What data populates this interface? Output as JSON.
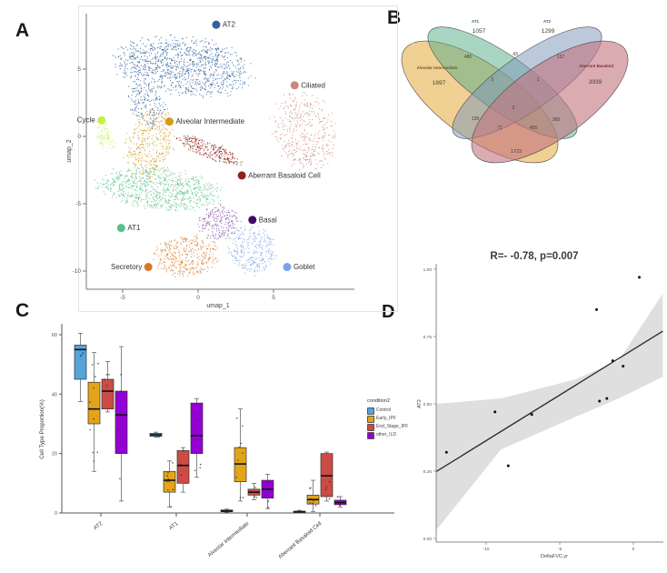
{
  "figure": {
    "panel_a_label": "A",
    "panel_b_label": "B",
    "panel_c_label": "C",
    "panel_d_label": "D"
  },
  "chart_data": [
    {
      "id": "umap",
      "type": "scatter",
      "xlabel": "umap_1",
      "ylabel": "umap_2",
      "xticks": [
        -5,
        0,
        5
      ],
      "yticks": [
        5,
        0,
        -5,
        -10
      ],
      "xlim": [
        -7.4,
        10.2
      ],
      "ylim": [
        -11.5,
        9.3
      ],
      "clusters": [
        {
          "name": "AT2",
          "color": "#31639c",
          "blobs": [
            {
              "cx": -1.0,
              "cy": 5.2,
              "rx": 4.4,
              "ry": 2.1,
              "rot": -8,
              "n": 1100
            },
            {
              "cx": -3.4,
              "cy": 2.3,
              "rx": 1.1,
              "ry": 1.7,
              "rot": 30,
              "n": 170
            }
          ],
          "label": {
            "text": "AT2",
            "dot": [
              1.2,
              8.3
            ],
            "side": "right"
          }
        },
        {
          "name": "Ciliated",
          "color": "#c9897c",
          "blobs": [
            {
              "cx": 7.0,
              "cy": 0.4,
              "rx": 2.0,
              "ry": 2.8,
              "rot": 12,
              "n": 430
            }
          ],
          "label": {
            "text": "Ciliated",
            "dot": [
              6.4,
              3.8
            ],
            "side": "right"
          }
        },
        {
          "name": "Cycle",
          "color": "#c3ef49",
          "blobs": [
            {
              "cx": -6.2,
              "cy": 0.0,
              "rx": 0.5,
              "ry": 1.2,
              "rot": 15,
              "n": 80
            }
          ],
          "label": {
            "text": "Cycle",
            "dot": [
              -6.4,
              1.2
            ],
            "side": "left"
          }
        },
        {
          "name": "Alveolar Intermediate",
          "color": "#d19c17",
          "blobs": [
            {
              "cx": -3.2,
              "cy": -0.5,
              "rx": 1.5,
              "ry": 2.7,
              "rot": -12,
              "n": 400
            }
          ],
          "label": {
            "text": "Alveolar Intermediate",
            "dot": [
              -1.9,
              1.1
            ],
            "side": "right"
          }
        },
        {
          "name": "Aberrant Basaloid Cell",
          "color": "#8e2418",
          "blobs": [
            {
              "cx": 0.7,
              "cy": -1.0,
              "rx": 2.4,
              "ry": 0.55,
              "rot": -24,
              "n": 270
            }
          ],
          "label": {
            "text": "Aberrant Basaloid Cell",
            "dot": [
              2.9,
              -2.9
            ],
            "side": "right"
          }
        },
        {
          "name": "AT1",
          "color": "#55c08b",
          "blobs": [
            {
              "cx": -2.6,
              "cy": -3.9,
              "rx": 3.9,
              "ry": 1.5,
              "rot": -6,
              "n": 800
            }
          ],
          "label": {
            "text": "AT1",
            "dot": [
              -5.1,
              -6.8
            ],
            "side": "right"
          }
        },
        {
          "name": "Basal",
          "color": "#8a5baa",
          "dot_color": "#3d0a6b",
          "blobs": [
            {
              "cx": 1.4,
              "cy": -6.4,
              "rx": 1.4,
              "ry": 1.2,
              "rot": 0,
              "n": 230
            }
          ],
          "label": {
            "text": "Basal",
            "dot": [
              3.6,
              -6.2
            ],
            "side": "right"
          }
        },
        {
          "name": "Secretory",
          "color": "#d97823",
          "blobs": [
            {
              "cx": -0.8,
              "cy": -8.9,
              "rx": 2.1,
              "ry": 1.5,
              "rot": 8,
              "n": 380
            }
          ],
          "label": {
            "text": "Secretory",
            "dot": [
              -3.3,
              -9.7
            ],
            "side": "left"
          }
        },
        {
          "name": "Goblet",
          "color": "#7ba3e8",
          "blobs": [
            {
              "cx": 3.6,
              "cy": -8.4,
              "rx": 1.5,
              "ry": 1.8,
              "rot": 0,
              "n": 300
            }
          ],
          "label": {
            "text": "Goblet",
            "dot": [
              5.9,
              -9.7
            ],
            "side": "right"
          }
        }
      ]
    },
    {
      "id": "venn",
      "type": "venn",
      "set_key": {
        "A": "Alveolar Intermediate",
        "B": "AT1",
        "C": "AT2",
        "D": "Aberrant Basaloid"
      },
      "sets": [
        {
          "key": "A",
          "name": "Alveolar Intermediate",
          "color": "#e8b04b",
          "label_color": "#6b5a1e"
        },
        {
          "key": "B",
          "name": "AT1",
          "color": "#5bae8c",
          "label_color": "#2f6b4f"
        },
        {
          "key": "C",
          "name": "AT2",
          "color": "#7e97b8",
          "label_color": "#3a5a80"
        },
        {
          "key": "D",
          "name": "Aberrant Basaloid",
          "color": "#c3737e",
          "label_color": "#7a2e35"
        }
      ],
      "regions": {
        "A": 1897,
        "B": 1057,
        "C": 1299,
        "D": 3939,
        "AB": 480,
        "BC": 43,
        "CD": 137,
        "AC": 139,
        "BD": 365,
        "AD": 1723,
        "ABC": 5,
        "BCD": 1,
        "ACD": 71,
        "ABD": 455,
        "ABCD": 2
      }
    },
    {
      "id": "boxplot",
      "type": "boxplot",
      "ylabel": "Cell Type Proportion(%)",
      "yticks": [
        0,
        20,
        40,
        60
      ],
      "ylim": [
        0,
        63
      ],
      "legend_title": "condition2",
      "conditions": [
        {
          "name": "Control",
          "color": "#56a3d9"
        },
        {
          "name": "Early_IPF",
          "color": "#e3a418"
        },
        {
          "name": "End_Stage_IPF",
          "color": "#cc4b44"
        },
        {
          "name": "other_ILD",
          "color": "#9400d3"
        }
      ],
      "categories": [
        "AT2",
        "AT1",
        "Alveolar Intermediate",
        "Aberrant Basaloid Cell"
      ],
      "boxes": [
        {
          "category": "AT2",
          "values": [
            {
              "lo": 37.5,
              "q1": 45,
              "med": 55,
              "q3": 56.5,
              "hi": 60.5,
              "pts": 3
            },
            {
              "lo": 14,
              "q1": 30,
              "med": 35,
              "q3": 44,
              "hi": 54,
              "pts": 10
            },
            {
              "lo": 34,
              "q1": 35,
              "med": 41,
              "q3": 45,
              "hi": 51,
              "pts": 4
            },
            {
              "lo": 4,
              "q1": 20,
              "med": 33,
              "q3": 41,
              "hi": 56,
              "pts": 6
            }
          ]
        },
        {
          "category": "AT1",
          "values": [
            {
              "lo": 25.5,
              "q1": 25.8,
              "med": 26.3,
              "q3": 26.8,
              "hi": 27.2,
              "pts": 3
            },
            {
              "lo": 2,
              "q1": 7,
              "med": 11,
              "q3": 14,
              "hi": 17.5,
              "pts": 9
            },
            {
              "lo": 7,
              "q1": 10,
              "med": 16,
              "q3": 21,
              "hi": 22,
              "pts": 5
            },
            {
              "lo": 12,
              "q1": 20,
              "med": 26,
              "q3": 37,
              "hi": 38.5,
              "pts": 4
            }
          ]
        },
        {
          "category": "Alveolar Intermediate",
          "values": [
            {
              "lo": 0.2,
              "q1": 0.4,
              "med": 0.7,
              "q3": 1.0,
              "hi": 1.3,
              "pts": 2
            },
            {
              "lo": 4,
              "q1": 10.5,
              "med": 16.5,
              "q3": 22,
              "hi": 35,
              "pts": 9
            },
            {
              "lo": 4.5,
              "q1": 6,
              "med": 7,
              "q3": 8,
              "hi": 10,
              "pts": 3
            },
            {
              "lo": 1.5,
              "q1": 5,
              "med": 8,
              "q3": 11,
              "hi": 13,
              "pts": 4
            }
          ]
        },
        {
          "category": "Aberrant Basaloid Cell",
          "values": [
            {
              "lo": 0.1,
              "q1": 0.2,
              "med": 0.4,
              "q3": 0.6,
              "hi": 0.9,
              "pts": 2
            },
            {
              "lo": 0.5,
              "q1": 3,
              "med": 4.5,
              "q3": 6,
              "hi": 11,
              "pts": 7
            },
            {
              "lo": 4,
              "q1": 5.5,
              "med": 12.5,
              "q3": 20,
              "hi": 20.5,
              "pts": 4
            },
            {
              "lo": 2,
              "q1": 2.8,
              "med": 3.5,
              "q3": 4.3,
              "hi": 5.5,
              "pts": 3
            }
          ]
        }
      ]
    },
    {
      "id": "correlation",
      "type": "scatter",
      "title": "R=- -0.78, p=0.007",
      "xlabel": "DeltaFVC.yr",
      "ylabel": "AT2",
      "xticks": [
        -10,
        -5,
        0
      ],
      "yticks": [
        0,
        0.25,
        0.5,
        0.75,
        1
      ],
      "ytick_labels": [
        "0.00",
        "0.25",
        "0.50",
        "0.75",
        "1.00"
      ],
      "xlim": [
        -13.4,
        2.0
      ],
      "ylim": [
        0,
        1
      ],
      "points": [
        [
          -12.7,
          0.32
        ],
        [
          -9.4,
          0.47
        ],
        [
          -8.5,
          0.27
        ],
        [
          -6.9,
          0.46
        ],
        [
          -2.5,
          0.85
        ],
        [
          -2.3,
          0.51
        ],
        [
          -1.8,
          0.52
        ],
        [
          -1.4,
          0.66
        ],
        [
          -0.7,
          0.64
        ],
        [
          0.4,
          0.97
        ]
      ],
      "regression": {
        "x1": -13.4,
        "y1": 0.248,
        "x2": 2.0,
        "y2": 0.77
      },
      "ci_band": {
        "upper": [
          [
            -13.4,
            0.5
          ],
          [
            -9,
            0.52
          ],
          [
            -4,
            0.59
          ],
          [
            -1,
            0.66
          ],
          [
            2.0,
            0.91
          ]
        ],
        "lower": [
          [
            -13.4,
            0.03
          ],
          [
            -9,
            0.33
          ],
          [
            -4,
            0.45
          ],
          [
            -1,
            0.52
          ],
          [
            2.0,
            0.6
          ]
        ]
      }
    }
  ]
}
